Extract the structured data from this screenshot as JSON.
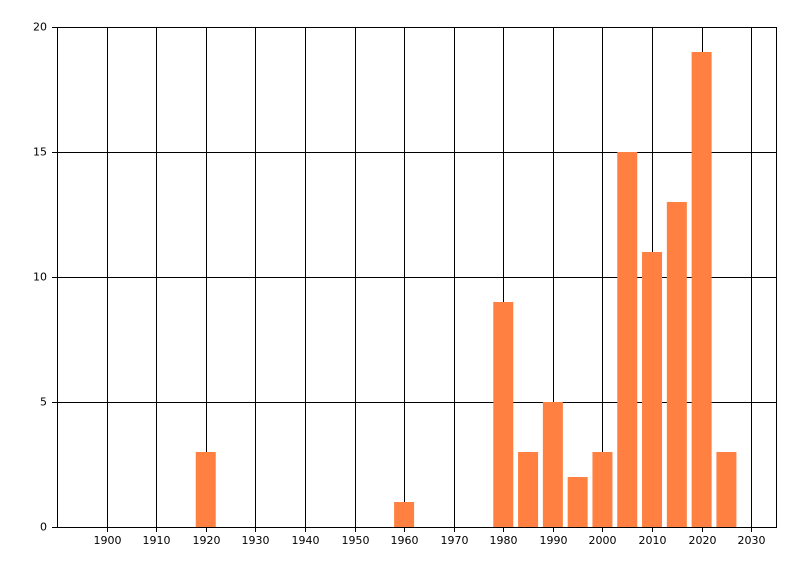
{
  "chart_data": {
    "type": "bar",
    "x": [
      1920,
      1960,
      1980,
      1985,
      1990,
      1995,
      2000,
      2005,
      2010,
      2015,
      2020,
      2025
    ],
    "values": [
      3,
      1,
      9,
      3,
      5,
      2,
      3,
      15,
      11,
      13,
      19,
      3
    ],
    "color": "#ff8040",
    "xlim": [
      1890,
      2035
    ],
    "xticks": [
      1900,
      1910,
      1920,
      1930,
      1940,
      1950,
      1960,
      1970,
      1980,
      1990,
      2000,
      2010,
      2020,
      2030
    ],
    "ylim": [
      0,
      20
    ],
    "yticks": [
      0,
      5,
      10,
      15,
      20
    ],
    "grid": true
  }
}
